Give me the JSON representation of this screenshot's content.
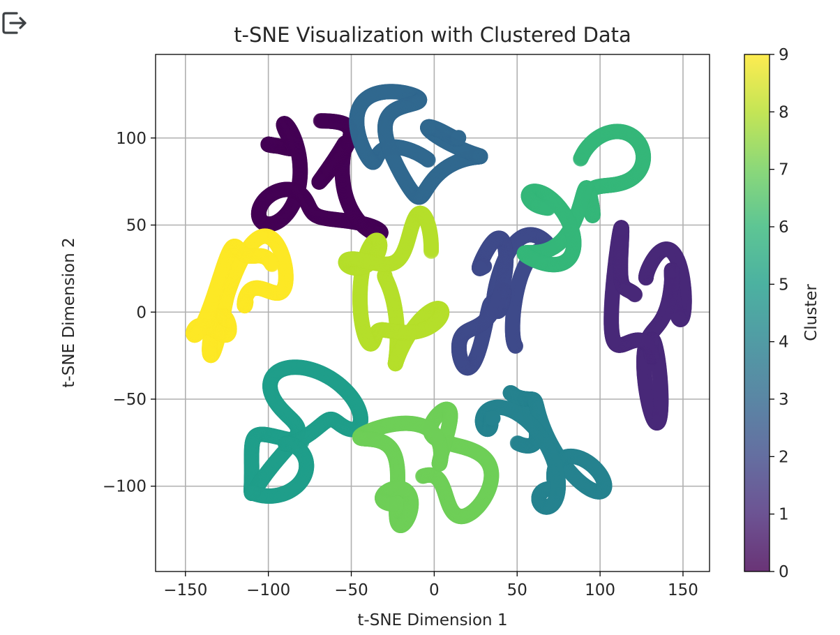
{
  "toolbar": {
    "export_icon": "export-arrow-icon"
  },
  "chart_data": {
    "type": "scatter",
    "title": "t-SNE Visualization with Clustered Data",
    "xlabel": "t-SNE Dimension 1",
    "ylabel": "t-SNE Dimension 2",
    "xlim": [
      -168,
      166
    ],
    "ylim": [
      -149,
      148
    ],
    "x_ticks": [
      -150,
      -100,
      -50,
      0,
      50,
      100,
      150
    ],
    "y_ticks": [
      -100,
      -50,
      0,
      50,
      100
    ],
    "x_tick_labels": [
      "−150",
      "−100",
      "−50",
      "0",
      "50",
      "100",
      "150"
    ],
    "y_tick_labels": [
      "−100",
      "−50",
      "0",
      "50",
      "100"
    ],
    "grid": true,
    "colormap": "viridis",
    "alpha": 0.8,
    "colorbar": {
      "label": "Cluster",
      "range": [
        0,
        9
      ],
      "ticks": [
        0,
        1,
        2,
        3,
        4,
        5,
        6,
        7,
        8,
        9
      ],
      "tick_labels": [
        "0",
        "1",
        "2",
        "3",
        "4",
        "5",
        "6",
        "7",
        "8",
        "9"
      ]
    },
    "clusters": [
      {
        "cluster": 0,
        "color": "#440154",
        "center": [
          -72,
          78
        ],
        "spread": [
          46,
          46
        ]
      },
      {
        "cluster": 1,
        "color": "#482878",
        "center": [
          128,
          -8
        ],
        "spread": [
          25,
          60
        ]
      },
      {
        "cluster": 2,
        "color": "#3e4a89",
        "center": [
          42,
          8
        ],
        "spread": [
          30,
          46
        ]
      },
      {
        "cluster": 3,
        "color": "#31688e",
        "center": [
          -10,
          98
        ],
        "spread": [
          44,
          38
        ]
      },
      {
        "cluster": 4,
        "color": "#26828e",
        "center": [
          62,
          -78
        ],
        "spread": [
          42,
          46
        ]
      },
      {
        "cluster": 5,
        "color": "#1f9e89",
        "center": [
          -82,
          -68
        ],
        "spread": [
          45,
          42
        ]
      },
      {
        "cluster": 6,
        "color": "#35b779",
        "center": [
          88,
          62
        ],
        "spread": [
          40,
          42
        ]
      },
      {
        "cluster": 7,
        "color": "#6ece58",
        "center": [
          -6,
          -92
        ],
        "spread": [
          44,
          46
        ]
      },
      {
        "cluster": 8,
        "color": "#b5de2b",
        "center": [
          -28,
          12
        ],
        "spread": [
          34,
          50
        ]
      },
      {
        "cluster": 9,
        "color": "#fde725",
        "center": [
          -120,
          5
        ],
        "spread": [
          32,
          42
        ]
      }
    ]
  }
}
